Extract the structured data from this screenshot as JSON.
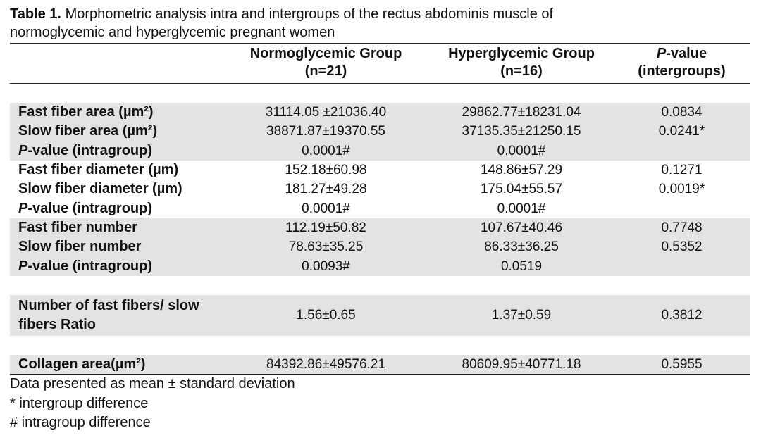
{
  "header": {
    "label": "Table 1.",
    "title_line1": "Morphometric analysis intra and intergroups of the rectus abdominis muscle of",
    "title_line2": "normoglycemic and hyperglycemic pregnant women"
  },
  "table": {
    "columns": [
      {
        "text": "Normoglycemic Group (n=21)"
      },
      {
        "text": "Hyperglycemic Group (n=16)"
      },
      {
        "em": "P",
        "text": "-value (intergroups)"
      }
    ],
    "groups": [
      {
        "rows": [
          {
            "label": "Fast fiber area (µm²)",
            "cells": [
              "31114.05 ±21036.40",
              "29862.77±18231.04",
              "0.0834"
            ]
          },
          {
            "label": "Slow fiber area (µm²)",
            "cells": [
              "38871.87±19370.55",
              "37135.35±21250.15",
              "0.0241*"
            ]
          },
          {
            "em": "P",
            "label": "-value (intragroup)",
            "cells": [
              "0.0001#",
              "0.0001#",
              ""
            ]
          }
        ]
      },
      {
        "rows": [
          {
            "label": "Fast fiber diameter (µm)",
            "cells": [
              "152.18±60.98",
              "148.86±57.29",
              "0.1271"
            ]
          },
          {
            "label": "Slow fiber diameter (µm)",
            "cells": [
              "181.27±49.28",
              "175.04±55.57",
              "0.0019*"
            ]
          },
          {
            "em": "P",
            "label": "-value (intragroup)",
            "cells": [
              "0.0001#",
              "0.0001#",
              ""
            ]
          }
        ]
      },
      {
        "rows": [
          {
            "label": "Fast fiber number",
            "cells": [
              "112.19±50.82",
              "107.67±40.46",
              "0.7748"
            ]
          },
          {
            "label": "Slow fiber number",
            "cells": [
              "78.63±35.25",
              "86.33±36.25",
              "0.5352"
            ]
          },
          {
            "em": "P",
            "label": "-value (intragroup)",
            "cells": [
              "0.0093#",
              "0.0519",
              ""
            ]
          }
        ]
      },
      {
        "rows": [
          {
            "label": "Number of fast fibers/ slow fibers Ratio",
            "cells": [
              "1.56±0.65",
              "1.37±0.59",
              "0.3812"
            ]
          }
        ]
      },
      {
        "rows": [
          {
            "label": "Collagen area(µm²)",
            "cells": [
              "84392.86±49576.21",
              "80609.95±40771.18",
              "0.5955"
            ]
          }
        ]
      }
    ]
  },
  "notes": [
    "Data presented as mean ± standard deviation",
    "* intergroup difference",
    "# intragroup difference"
  ]
}
